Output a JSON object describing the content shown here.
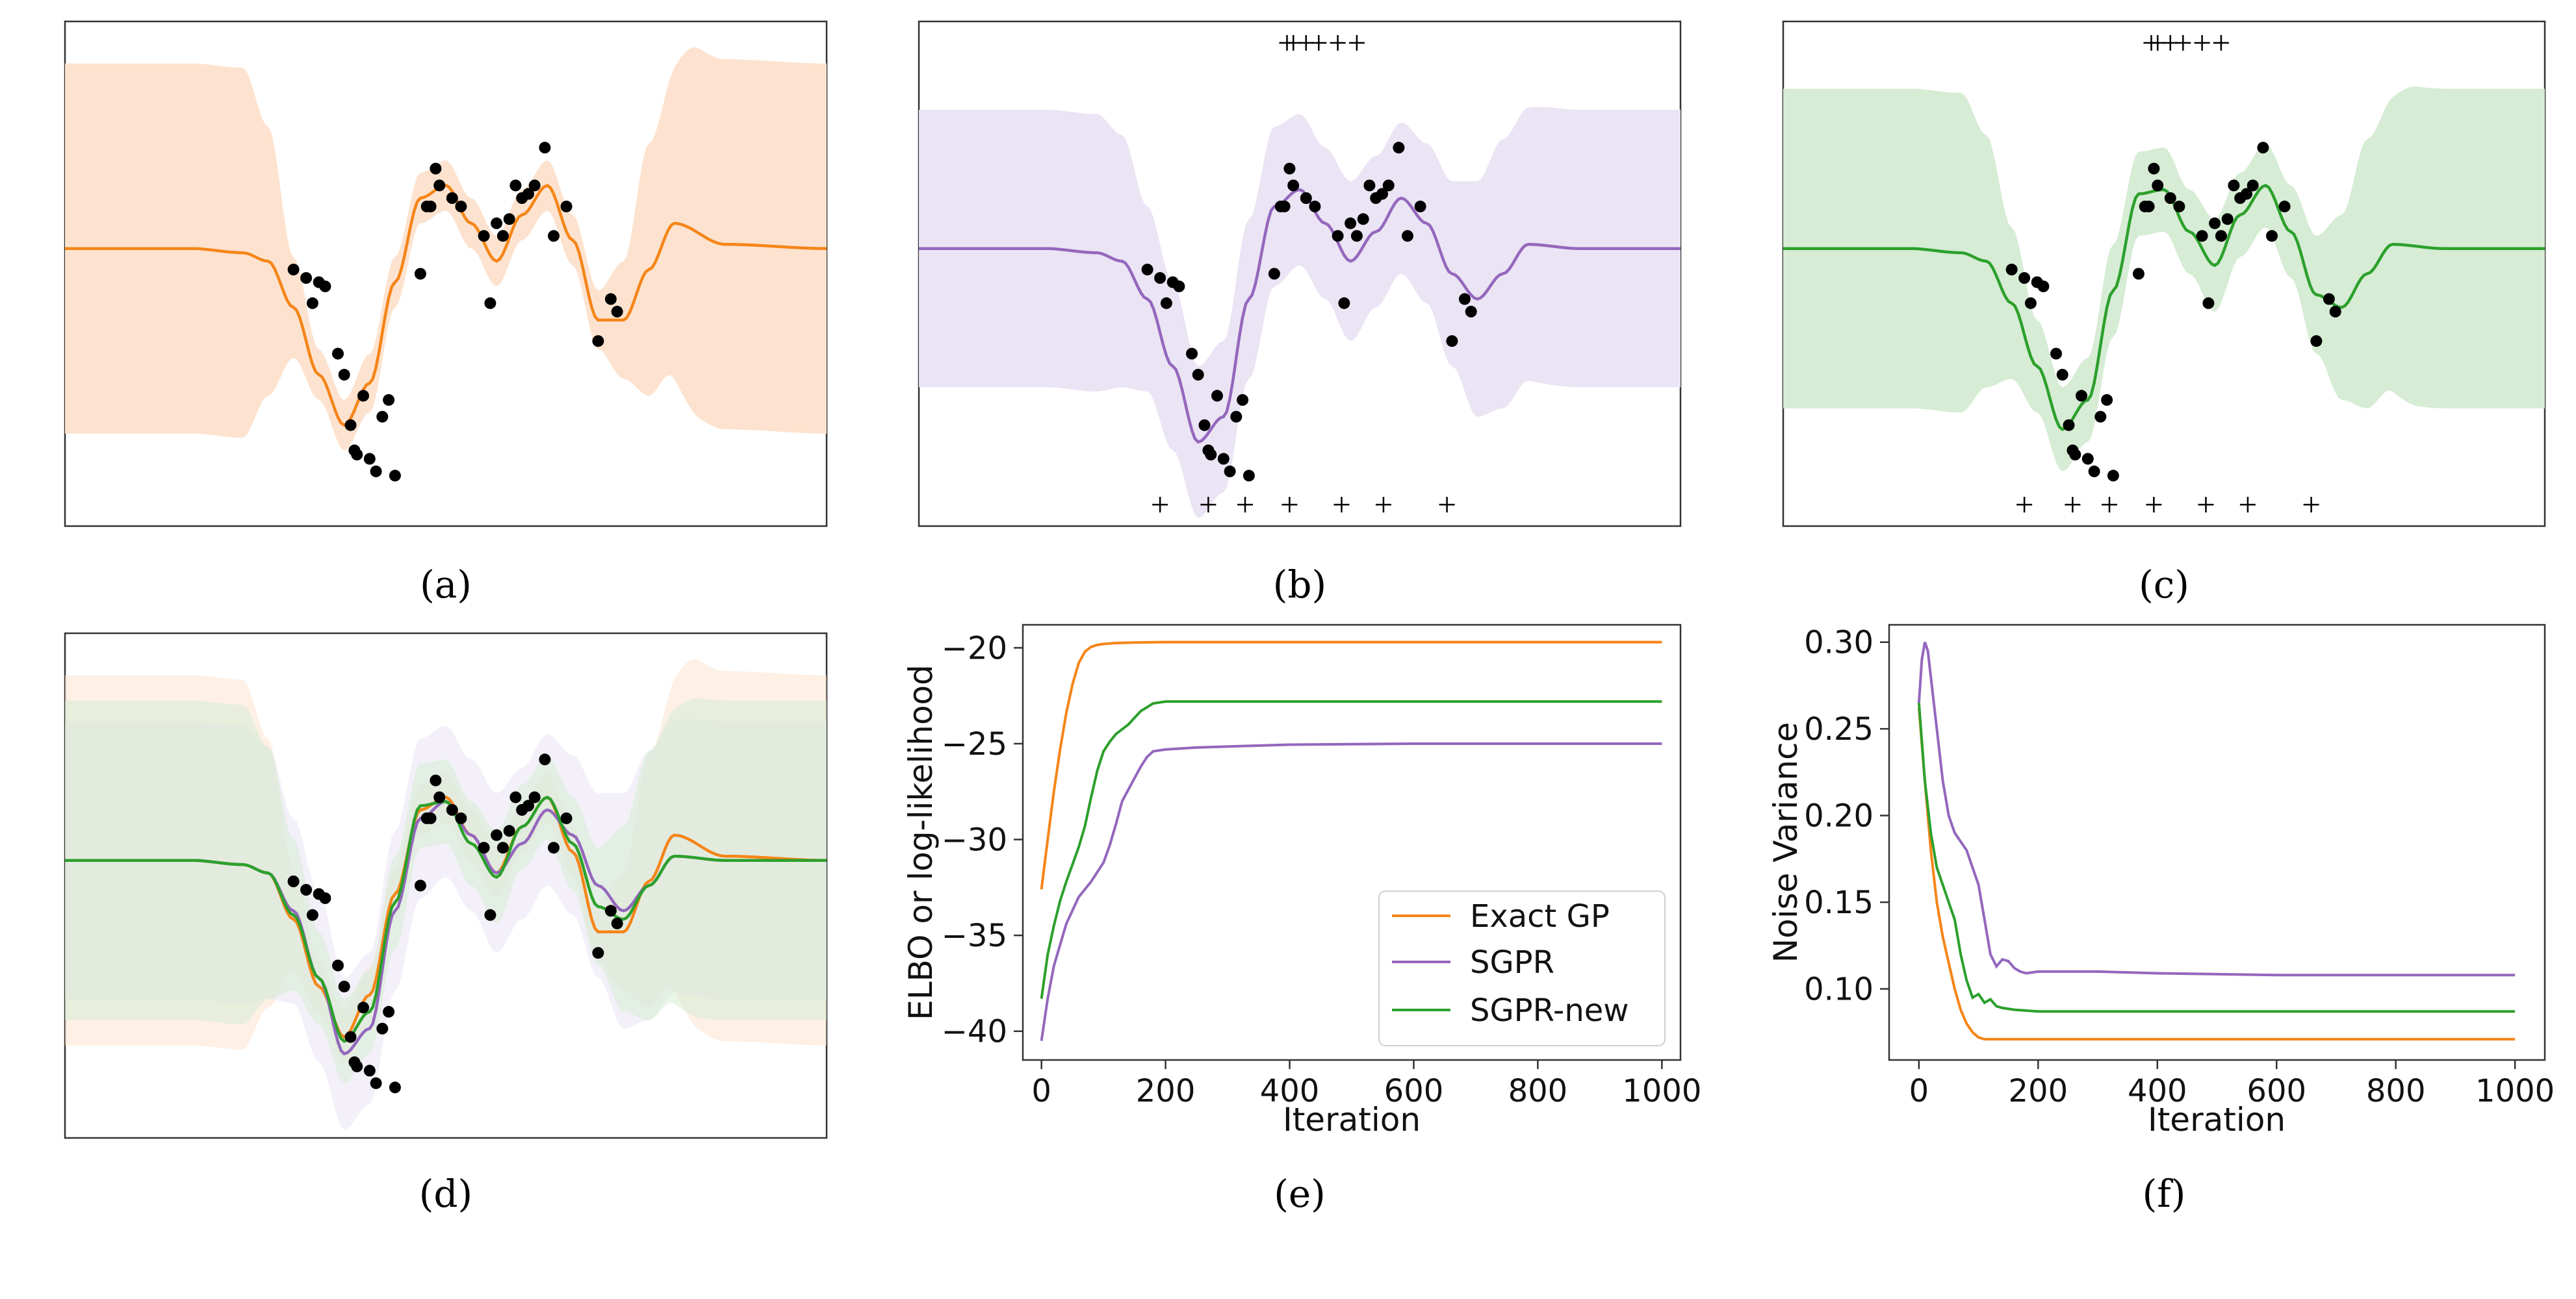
{
  "colors": {
    "exact": "#f58518",
    "sgpr": "#9467bd",
    "sgpr_new": "#2ca02c",
    "exact_band": "#fde3cf",
    "sgpr_band": "#ebe4f4",
    "sgpr_new_band": "#d6ecd4",
    "points": "#000000"
  },
  "captions": [
    "(a)",
    "(b)",
    "(c)",
    "(d)",
    "(e)",
    "(f)"
  ],
  "chart_data": [
    {
      "id": "a",
      "type": "line",
      "title": "",
      "note": "Exact GP regression: posterior mean with shaded uncertainty band and training points",
      "x_range": [
        -3,
        3
      ],
      "ylim": [
        -3.3,
        2.7
      ],
      "series": [
        {
          "name": "Exact GP",
          "mean_x": [
            -3,
            -2,
            -1.6,
            -1.4,
            -1.2,
            -1,
            -0.8,
            -0.6,
            -0.4,
            -0.2,
            0,
            0.2,
            0.4,
            0.6,
            0.8,
            1,
            1.2,
            1.4,
            1.6,
            1.8,
            2.2,
            3
          ],
          "mean_y": [
            0,
            0,
            -0.05,
            -0.15,
            -0.7,
            -1.5,
            -2.1,
            -1.6,
            -0.4,
            0.6,
            0.75,
            0.3,
            -0.15,
            0.4,
            0.75,
            0.1,
            -0.85,
            -0.85,
            -0.25,
            0.3,
            0.05,
            0
          ],
          "band_x": [
            -3,
            -1.6,
            -1.4,
            -1.2,
            -1,
            -0.8,
            -0.6,
            -0.4,
            -0.2,
            0,
            0.2,
            0.4,
            0.6,
            0.8,
            1,
            1.2,
            1.4,
            1.6,
            2,
            3
          ],
          "band_half": [
            2.2,
            2.2,
            1.6,
            0.6,
            0.3,
            0.3,
            0.35,
            0.3,
            0.3,
            0.3,
            0.3,
            0.3,
            0.3,
            0.3,
            0.3,
            0.35,
            0.7,
            1.5,
            2.2,
            2.2
          ]
        }
      ],
      "points_x": [
        -1.2,
        -1.1,
        -1.05,
        -1,
        -0.95,
        -0.85,
        -0.8,
        -0.75,
        -0.72,
        -0.7,
        -0.65,
        -0.6,
        -0.55,
        -0.5,
        -0.45,
        -0.4,
        -0.2,
        -0.15,
        -0.12,
        -0.08,
        -0.05,
        0.05,
        0.12,
        0.3,
        0.35,
        0.4,
        0.45,
        0.5,
        0.55,
        0.6,
        0.65,
        0.7,
        0.78,
        0.85,
        0.95,
        1.2,
        1.3,
        1.35
      ],
      "points_y": [
        -0.25,
        -0.35,
        -0.65,
        -0.4,
        -0.45,
        -1.25,
        -1.5,
        -2.1,
        -2.4,
        -2.45,
        -1.75,
        -2.5,
        -2.65,
        -2.0,
        -1.8,
        -2.7,
        -0.3,
        0.5,
        0.5,
        0.95,
        0.75,
        0.6,
        0.5,
        0.15,
        -0.65,
        0.3,
        0.15,
        0.35,
        0.75,
        0.6,
        0.65,
        0.75,
        1.2,
        0.15,
        0.5,
        -1.1,
        -0.6,
        -0.75
      ]
    },
    {
      "id": "b",
      "type": "line",
      "title": "",
      "note": "SGPR: posterior mean with uncertainty band, training points, inducing points shown as + markers",
      "x_range": [
        -3,
        3
      ],
      "ylim": [
        -3.3,
        2.7
      ],
      "series": [
        {
          "name": "SGPR",
          "mean_x": [
            -3,
            -2,
            -1.6,
            -1.4,
            -1.2,
            -1,
            -0.8,
            -0.6,
            -0.4,
            -0.2,
            0,
            0.2,
            0.4,
            0.6,
            0.8,
            1,
            1.2,
            1.4,
            1.6,
            1.8,
            2.2,
            3
          ],
          "mean_y": [
            0,
            0,
            -0.05,
            -0.15,
            -0.6,
            -1.4,
            -2.3,
            -2.0,
            -0.6,
            0.5,
            0.7,
            0.3,
            -0.15,
            0.2,
            0.6,
            0.3,
            -0.3,
            -0.6,
            -0.3,
            0.05,
            0,
            0
          ],
          "band_x": [
            -3,
            -1.6,
            -1.4,
            -1.2,
            -1,
            -0.8,
            -0.6,
            -0.4,
            -0.2,
            0,
            0.2,
            0.4,
            0.6,
            0.8,
            1,
            1.2,
            1.4,
            1.6,
            2,
            3
          ],
          "band_half": [
            1.65,
            1.65,
            1.5,
            1.1,
            1.0,
            0.9,
            0.9,
            0.95,
            0.95,
            0.9,
            0.9,
            0.95,
            0.9,
            0.9,
            0.95,
            1.1,
            1.4,
            1.6,
            1.65,
            1.65
          ]
        }
      ],
      "inducing_top_x": [
        -0.1,
        -0.05,
        0.05,
        0.15,
        0.3,
        0.45
      ],
      "inducing_bottom_x": [
        -1.1,
        -0.72,
        -0.43,
        -0.08,
        0.33,
        0.66,
        1.16
      ]
    },
    {
      "id": "c",
      "type": "line",
      "title": "",
      "note": "SGPR-new: posterior mean with uncertainty band, training points, inducing points shown as + markers",
      "x_range": [
        -3,
        3
      ],
      "ylim": [
        -3.3,
        2.7
      ],
      "series": [
        {
          "name": "SGPR-new",
          "mean_x": [
            -3,
            -2,
            -1.6,
            -1.4,
            -1.2,
            -1,
            -0.8,
            -0.6,
            -0.4,
            -0.2,
            0,
            0.2,
            0.4,
            0.6,
            0.8,
            1,
            1.2,
            1.4,
            1.6,
            1.8,
            2.2,
            3
          ],
          "mean_y": [
            0,
            0,
            -0.05,
            -0.15,
            -0.65,
            -1.4,
            -2.15,
            -1.8,
            -0.5,
            0.65,
            0.7,
            0.2,
            -0.2,
            0.4,
            0.75,
            0.2,
            -0.55,
            -0.7,
            -0.3,
            0.05,
            0,
            0
          ],
          "band_x": [
            -3,
            -1.6,
            -1.4,
            -1.2,
            -1,
            -0.8,
            -0.6,
            -0.4,
            -0.2,
            0,
            0.2,
            0.4,
            0.6,
            0.8,
            1,
            1.2,
            1.4,
            1.6,
            2,
            3
          ],
          "band_half": [
            1.9,
            1.9,
            1.5,
            0.9,
            0.55,
            0.5,
            0.5,
            0.55,
            0.5,
            0.5,
            0.5,
            0.55,
            0.5,
            0.5,
            0.55,
            0.7,
            1.1,
            1.6,
            1.9,
            1.9
          ]
        }
      ],
      "inducing_top_x": [
        -0.1,
        -0.05,
        0.05,
        0.15,
        0.3,
        0.45
      ],
      "inducing_bottom_x": [
        -1.1,
        -0.72,
        -0.43,
        -0.08,
        0.33,
        0.66,
        1.16
      ]
    },
    {
      "id": "d",
      "type": "line",
      "title": "",
      "note": "Overlay of the three models from (a), (b) and (c)",
      "x_range": [
        -3,
        3
      ],
      "ylim": [
        -3.3,
        2.7
      ]
    },
    {
      "id": "e",
      "type": "line",
      "title": "",
      "xlabel": "Iteration",
      "ylabel": "ELBO or log-likelihood",
      "xlim": [
        -30,
        1030
      ],
      "ylim": [
        -41.5,
        -18.8
      ],
      "x_ticks": [
        0,
        200,
        400,
        600,
        800,
        1000
      ],
      "y_ticks": [
        -40,
        -35,
        -30,
        -25,
        -20
      ],
      "legend": {
        "position": "lower-right",
        "entries": [
          "Exact GP",
          "SGPR",
          "SGPR-new"
        ]
      },
      "series": [
        {
          "name": "Exact GP",
          "x": [
            0,
            10,
            20,
            30,
            40,
            50,
            60,
            70,
            80,
            90,
            100,
            120,
            150,
            200,
            400,
            600,
            800,
            1000
          ],
          "y": [
            -32.6,
            -30.0,
            -27.5,
            -25.3,
            -23.4,
            -21.9,
            -20.8,
            -20.2,
            -19.95,
            -19.85,
            -19.8,
            -19.75,
            -19.72,
            -19.7,
            -19.7,
            -19.7,
            -19.7,
            -19.7
          ]
        },
        {
          "name": "SGPR",
          "x": [
            0,
            10,
            20,
            40,
            60,
            80,
            100,
            110,
            120,
            130,
            140,
            150,
            160,
            170,
            180,
            200,
            250,
            300,
            400,
            600,
            800,
            1000
          ],
          "y": [
            -40.5,
            -38.3,
            -36.6,
            -34.4,
            -33.0,
            -32.2,
            -31.2,
            -30.3,
            -29.2,
            -28.0,
            -27.4,
            -26.8,
            -26.2,
            -25.7,
            -25.4,
            -25.3,
            -25.2,
            -25.15,
            -25.05,
            -25.0,
            -25.0,
            -25.0
          ]
        },
        {
          "name": "SGPR-new",
          "x": [
            0,
            10,
            20,
            30,
            40,
            50,
            60,
            70,
            80,
            90,
            100,
            110,
            120,
            140,
            160,
            180,
            200,
            300,
            400,
            600,
            800,
            1000
          ],
          "y": [
            -38.3,
            -36.0,
            -34.5,
            -33.2,
            -32.2,
            -31.3,
            -30.4,
            -29.3,
            -27.8,
            -26.4,
            -25.4,
            -24.9,
            -24.5,
            -24.0,
            -23.3,
            -22.9,
            -22.8,
            -22.8,
            -22.8,
            -22.8,
            -22.8,
            -22.8
          ]
        }
      ]
    },
    {
      "id": "f",
      "type": "line",
      "title": "",
      "xlabel": "Iteration",
      "ylabel": "Noise Variance",
      "xlim": [
        -50,
        1050
      ],
      "ylim": [
        0.059,
        0.31
      ],
      "x_ticks": [
        0,
        200,
        400,
        600,
        800,
        1000
      ],
      "y_ticks": [
        0.1,
        0.15,
        0.2,
        0.25,
        0.3
      ],
      "y_tick_labels": [
        "0.10",
        "0.15",
        "0.20",
        "0.25",
        "0.30"
      ],
      "series": [
        {
          "name": "Exact GP",
          "x": [
            0,
            10,
            20,
            30,
            40,
            50,
            60,
            70,
            80,
            90,
            100,
            110,
            120,
            150,
            200,
            400,
            600,
            800,
            1000
          ],
          "y": [
            0.262,
            0.22,
            0.18,
            0.15,
            0.13,
            0.115,
            0.1,
            0.088,
            0.08,
            0.075,
            0.072,
            0.071,
            0.071,
            0.071,
            0.071,
            0.071,
            0.071,
            0.071,
            0.071
          ]
        },
        {
          "name": "SGPR",
          "x": [
            0,
            5,
            10,
            15,
            20,
            30,
            40,
            50,
            60,
            80,
            100,
            110,
            120,
            130,
            140,
            150,
            160,
            170,
            180,
            200,
            300,
            400,
            600,
            800,
            1000
          ],
          "y": [
            0.265,
            0.29,
            0.3,
            0.295,
            0.28,
            0.25,
            0.22,
            0.2,
            0.19,
            0.18,
            0.16,
            0.14,
            0.12,
            0.113,
            0.117,
            0.116,
            0.112,
            0.11,
            0.109,
            0.11,
            0.11,
            0.109,
            0.108,
            0.108,
            0.108
          ]
        },
        {
          "name": "SGPR-new",
          "x": [
            0,
            10,
            20,
            30,
            40,
            50,
            60,
            70,
            80,
            90,
            100,
            110,
            120,
            130,
            140,
            160,
            200,
            300,
            400,
            600,
            800,
            1000
          ],
          "y": [
            0.265,
            0.22,
            0.19,
            0.17,
            0.16,
            0.15,
            0.14,
            0.12,
            0.105,
            0.095,
            0.097,
            0.092,
            0.094,
            0.09,
            0.089,
            0.088,
            0.087,
            0.087,
            0.087,
            0.087,
            0.087,
            0.087
          ]
        }
      ]
    }
  ]
}
